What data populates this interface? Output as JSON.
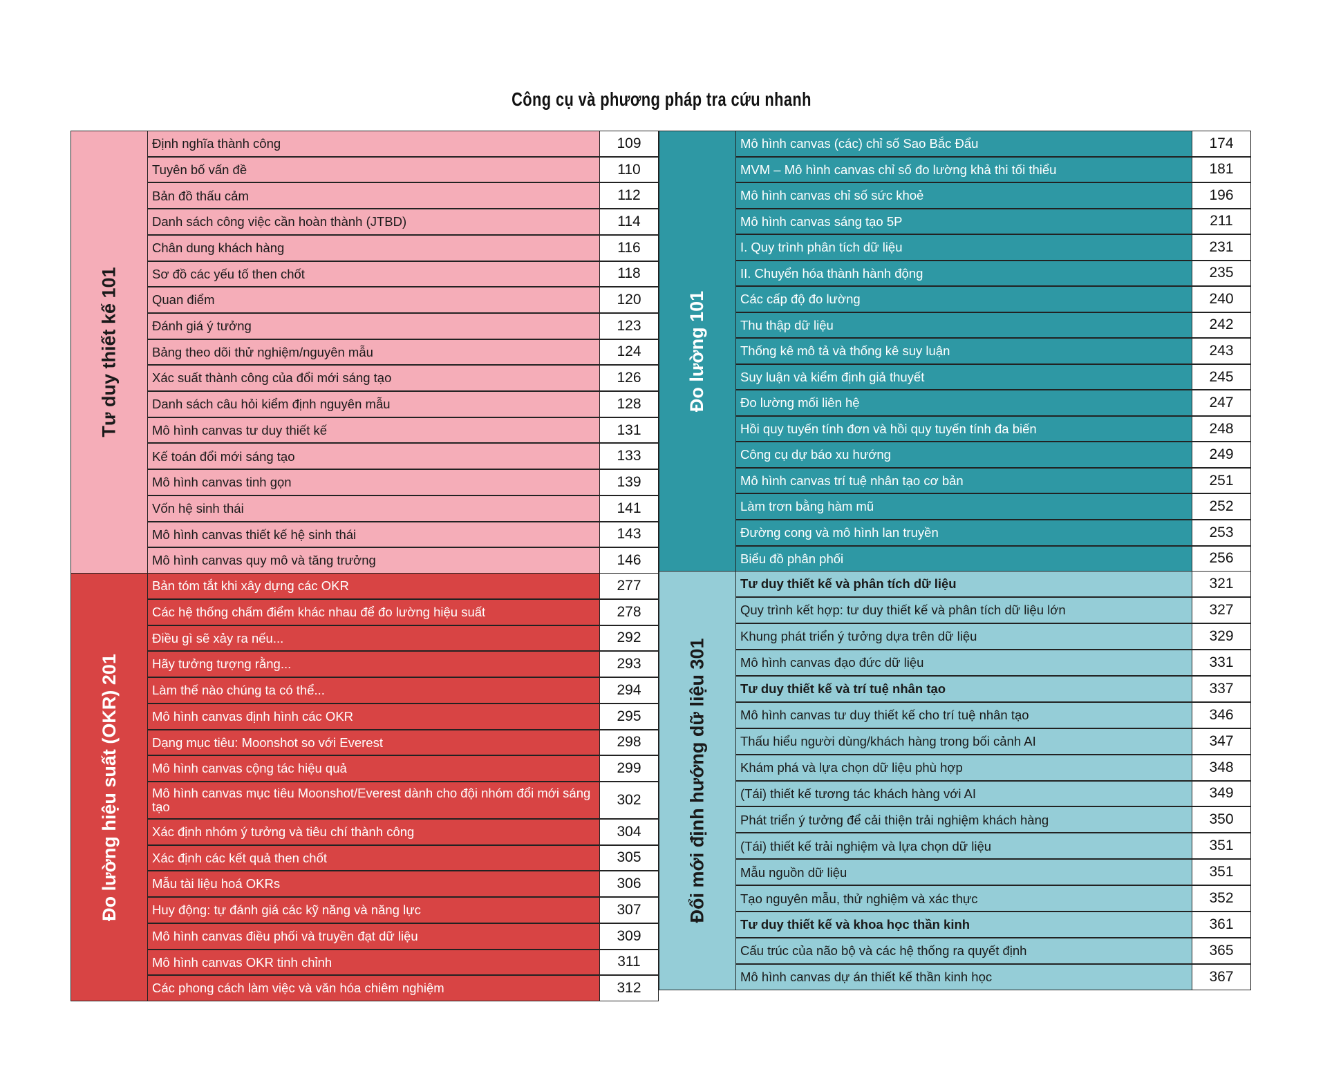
{
  "title": "Công cụ và phương pháp tra cứu nhanh",
  "colors": {
    "pink": "#f5adb8",
    "red": "#d84444",
    "teal": "#2e98a4",
    "lightblue": "#95cdd7"
  },
  "left": [
    {
      "label": "Tư duy thiết kế 101",
      "color": "#f5adb8",
      "text_color": "#1a1a1a",
      "items": [
        {
          "text": "Định nghĩa thành công",
          "page": "109"
        },
        {
          "text": "Tuyên bố vấn đề",
          "page": "110"
        },
        {
          "text": "Bản đồ thấu cảm",
          "page": "112"
        },
        {
          "text": "Danh sách công việc cần hoàn thành (JTBD)",
          "page": "114"
        },
        {
          "text": "Chân dung khách hàng",
          "page": "116"
        },
        {
          "text": "Sơ đồ các yếu tố then chốt",
          "page": "118"
        },
        {
          "text": "Quan điểm",
          "page": "120"
        },
        {
          "text": "Đánh giá ý tưởng",
          "page": "123"
        },
        {
          "text": "Bảng theo dõi thử nghiệm/nguyên mẫu",
          "page": "124"
        },
        {
          "text": "Xác suất thành công của đổi mới sáng tạo",
          "page": "126"
        },
        {
          "text": "Danh sách câu hỏi kiểm định nguyên mẫu",
          "page": "128"
        },
        {
          "text": "Mô hình canvas tư duy thiết kế",
          "page": "131"
        },
        {
          "text": "Kế toán đổi mới sáng tạo",
          "page": "133"
        },
        {
          "text": "Mô hình canvas tinh gọn",
          "page": "139"
        },
        {
          "text": "Vốn hệ sinh thái",
          "page": "141"
        },
        {
          "text": "Mô hình canvas thiết kế hệ sinh thái",
          "page": "143"
        },
        {
          "text": "Mô hình canvas quy mô và tăng trưởng",
          "page": "146"
        }
      ]
    },
    {
      "label": "Đo lường hiệu suất (OKR) 201",
      "color": "#d84444",
      "text_color": "#ffffff",
      "items": [
        {
          "text": "Bản tóm tắt khi xây dựng các OKR",
          "page": "277"
        },
        {
          "text": "Các hệ thống chấm điểm khác nhau để đo lường hiệu suất",
          "page": "278"
        },
        {
          "text": "Điều gì sẽ xảy ra nếu...",
          "page": "292"
        },
        {
          "text": "Hãy tưởng tượng rằng...",
          "page": "293"
        },
        {
          "text": "Làm thế nào chúng ta có thể...",
          "page": "294"
        },
        {
          "text": "Mô hình canvas định hình các OKR",
          "page": "295"
        },
        {
          "text": "Dạng mục tiêu: Moonshot so với Everest",
          "page": "298"
        },
        {
          "text": "Mô hình canvas cộng tác hiệu quả",
          "page": "299"
        },
        {
          "text": "Mô hình canvas mục tiêu Moonshot/Everest dành cho đội nhóm đổi mới  sáng tạo",
          "page": "302",
          "tall": true
        },
        {
          "text": "Xác định nhóm ý tưởng và tiêu chí thành công",
          "page": "304"
        },
        {
          "text": "Xác định các kết quả then chốt",
          "page": "305"
        },
        {
          "text": "Mẫu tài liệu hoá OKRs",
          "page": "306"
        },
        {
          "text": "Huy động: tự đánh giá các kỹ năng và năng lực",
          "page": "307"
        },
        {
          "text": "Mô hình canvas điều phối và truyền đạt dữ liệu",
          "page": "309"
        },
        {
          "text": "Mô hình canvas OKR tinh chỉnh",
          "page": "311"
        },
        {
          "text": "Các phong cách làm việc và văn hóa chiêm nghiệm",
          "page": "312"
        }
      ]
    }
  ],
  "right": [
    {
      "label": "Đo lường 101",
      "color": "#2e98a4",
      "text_color": "#ffffff",
      "items": [
        {
          "text": "Mô hình canvas (các) chỉ số Sao Bắc Đẩu",
          "page": "174"
        },
        {
          "text": "MVM – Mô hình canvas chỉ số đo lường khả thi tối thiểu",
          "page": "181"
        },
        {
          "text": "Mô hình canvas chỉ số sức khoẻ",
          "page": "196"
        },
        {
          "text": "Mô hình canvas sáng tạo 5P",
          "page": "211"
        },
        {
          "text": "I. Quy trình phân tích dữ liệu",
          "page": "231"
        },
        {
          "text": "II. Chuyển hóa thành hành động",
          "page": "235"
        },
        {
          "text": "Các cấp độ đo lường",
          "page": "240"
        },
        {
          "text": "Thu thập dữ liệu",
          "page": "242"
        },
        {
          "text": "Thống kê mô tả và thống kê suy luận",
          "page": "243"
        },
        {
          "text": "Suy luận và kiểm định giả thuyết",
          "page": "245"
        },
        {
          "text": "Đo lường mối liên hệ",
          "page": "247"
        },
        {
          "text": "Hồi quy tuyến tính đơn và hồi quy tuyến tính đa biến",
          "page": "248"
        },
        {
          "text": "Công cụ dự báo xu hướng",
          "page": "249"
        },
        {
          "text": "Mô hình canvas trí tuệ nhân tạo cơ bản",
          "page": "251"
        },
        {
          "text": "Làm trơn bằng hàm mũ",
          "page": "252"
        },
        {
          "text": "Đường cong và mô hình lan truyền",
          "page": "253"
        },
        {
          "text": "Biểu đồ phân phối",
          "page": "256"
        }
      ]
    },
    {
      "label": "Đổi mới định hướng dữ liệu 301",
      "color": "#95cdd7",
      "text_color": "#1a1a1a",
      "items": [
        {
          "text": "Tư duy thiết kế và phân tích dữ liệu",
          "page": "321",
          "heading": true
        },
        {
          "text": "Quy trình kết hợp: tư duy thiết kế và phân tích dữ liệu lớn",
          "page": "327"
        },
        {
          "text": "Khung phát triển ý tưởng dựa trên dữ liệu",
          "page": "329"
        },
        {
          "text": "Mô hình canvas đạo đức dữ liệu",
          "page": "331"
        },
        {
          "text": "Tư duy thiết kế và trí tuệ nhân tạo",
          "page": "337",
          "heading": true
        },
        {
          "text": "Mô hình canvas tư duy thiết kế cho trí tuệ nhân tạo",
          "page": "346"
        },
        {
          "text": "Thấu hiểu người dùng/khách hàng trong bối cảnh AI",
          "page": "347"
        },
        {
          "text": "Khám phá và lựa chọn dữ liệu phù hợp",
          "page": "348"
        },
        {
          "text": "(Tái) thiết kế tương tác khách hàng với AI",
          "page": "349"
        },
        {
          "text": "Phát triển ý tưởng để cải thiện trải nghiệm khách hàng",
          "page": "350"
        },
        {
          "text": "(Tái) thiết kế trải nghiệm và lựa chọn dữ liệu",
          "page": "351"
        },
        {
          "text": "Mẫu nguồn dữ liệu",
          "page": "351"
        },
        {
          "text": "Tạo nguyên mẫu, thử nghiệm và xác thực",
          "page": "352"
        },
        {
          "text": "Tư duy thiết kế và khoa học thần kinh",
          "page": "361",
          "heading": true
        },
        {
          "text": "Cấu trúc của não bộ và các hệ thống ra quyết định",
          "page": "365"
        },
        {
          "text": "Mô hình canvas dự án thiết kế thần kinh học",
          "page": "367"
        }
      ]
    }
  ]
}
